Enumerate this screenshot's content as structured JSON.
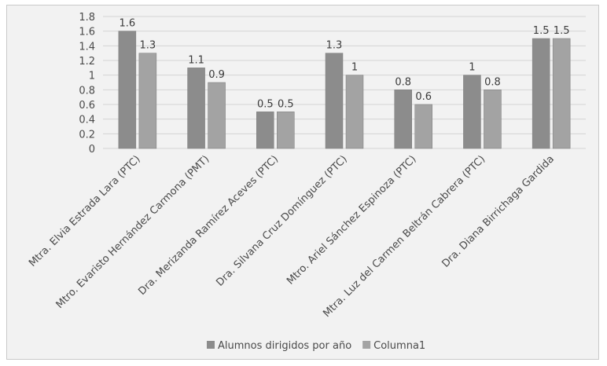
{
  "chart_data": {
    "type": "bar",
    "categories": [
      "Mtra. Elvia Estrada Lara (PTC)",
      "Mtro. Evaristo Hernández Carmona (PMT)",
      "Dra. Merizanda Ramírez Aceves (PTC)",
      "Dra. Silvana Cruz Domínguez (PTC)",
      "Mtro. Ariel Sánchez Espinoza (PTC)",
      "Mtra. Luz del Carmen Beltrán Cabrera (PTC)",
      "Dra. Diana Birrichaga Gardida"
    ],
    "series": [
      {
        "name": "Alumnos dirigidos por año",
        "values": [
          1.6,
          1.1,
          0.5,
          1.3,
          0.8,
          1.0,
          1.5
        ],
        "color": "#8c8c8c"
      },
      {
        "name": "Columna1",
        "values": [
          1.3,
          0.9,
          0.5,
          1.0,
          0.6,
          0.8,
          1.5
        ],
        "color": "#a3a3a3"
      }
    ],
    "data_labels": [
      [
        "1.6",
        "1.1",
        "0.5",
        "1.3",
        "0.8",
        "1",
        "1.5"
      ],
      [
        "1.3",
        "0.9",
        "0.5",
        "1",
        "0.6",
        "0.8",
        "1.5"
      ]
    ],
    "y_ticks": [
      "0",
      "0.2",
      "0.4",
      "0.6",
      "0.8",
      "1",
      "1.2",
      "1.4",
      "1.6",
      "1.8"
    ],
    "ylim": [
      0,
      1.8
    ],
    "grid": true,
    "legend_position": "bottom",
    "title": "",
    "xlabel": "",
    "ylabel": ""
  }
}
